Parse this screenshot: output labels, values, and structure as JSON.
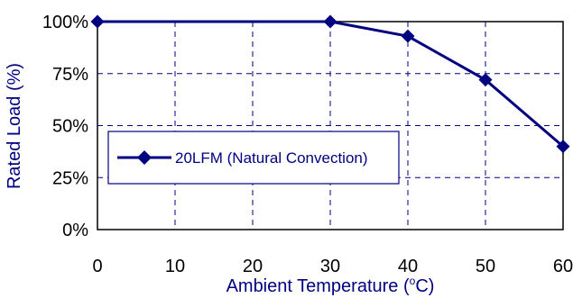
{
  "chart_data": {
    "type": "line",
    "xlabel": "Ambient Temperature (",
    "xlabel_sup": "o",
    "xlabel_suffix": "C)",
    "ylabel": "Rated Load (%)",
    "xlim": [
      0,
      60
    ],
    "ylim": [
      0,
      100
    ],
    "x_ticks": [
      "0",
      "10",
      "20",
      "30",
      "40",
      "50",
      "60"
    ],
    "y_ticks": [
      "0%",
      "25%",
      "50%",
      "75%",
      "100%"
    ],
    "grid": true,
    "legend": "center-left",
    "series": [
      {
        "name": "20LFM (Natural Convection)",
        "color": "#000080",
        "marker": "diamond",
        "x": [
          0,
          30,
          40,
          50,
          60
        ],
        "y": [
          100,
          100,
          93,
          72,
          40
        ]
      }
    ]
  }
}
